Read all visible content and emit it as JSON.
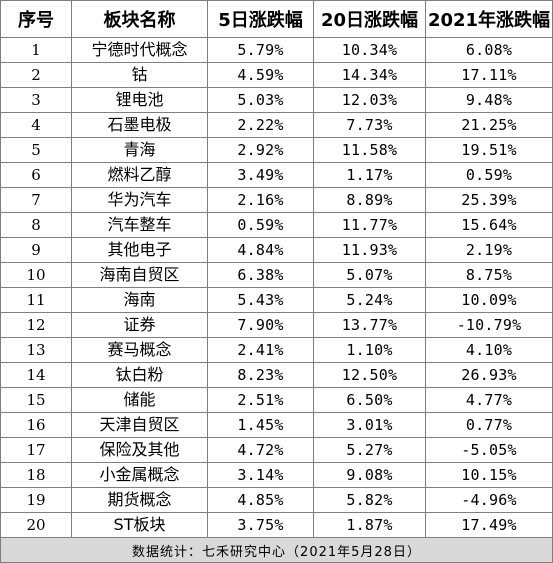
{
  "table": {
    "headers": [
      "序号",
      "板块名称",
      "5日涨跌幅",
      "20日涨跌幅",
      "2021年涨跌幅"
    ],
    "rows": [
      [
        "1",
        "宁德时代概念",
        "5.79%",
        "10.34%",
        "6.08%"
      ],
      [
        "2",
        "钴",
        "4.59%",
        "14.34%",
        "17.11%"
      ],
      [
        "3",
        "锂电池",
        "5.03%",
        "12.03%",
        "9.48%"
      ],
      [
        "4",
        "石墨电极",
        "2.22%",
        "7.73%",
        "21.25%"
      ],
      [
        "5",
        "青海",
        "2.92%",
        "11.58%",
        "19.51%"
      ],
      [
        "6",
        "燃料乙醇",
        "3.49%",
        "1.17%",
        "0.59%"
      ],
      [
        "7",
        "华为汽车",
        "2.16%",
        "8.89%",
        "25.39%"
      ],
      [
        "8",
        "汽车整车",
        "0.59%",
        "11.77%",
        "15.64%"
      ],
      [
        "9",
        "其他电子",
        "4.84%",
        "11.93%",
        "2.19%"
      ],
      [
        "10",
        "海南自贸区",
        "6.38%",
        "5.07%",
        "8.75%"
      ],
      [
        "11",
        "海南",
        "5.43%",
        "5.24%",
        "10.09%"
      ],
      [
        "12",
        "证券",
        "7.90%",
        "13.77%",
        "-10.79%"
      ],
      [
        "13",
        "赛马概念",
        "2.41%",
        "1.10%",
        "4.10%"
      ],
      [
        "14",
        "钛白粉",
        "8.23%",
        "12.50%",
        "26.93%"
      ],
      [
        "15",
        "储能",
        "2.51%",
        "6.50%",
        "4.77%"
      ],
      [
        "16",
        "天津自贸区",
        "1.45%",
        "3.01%",
        "0.77%"
      ],
      [
        "17",
        "保险及其他",
        "4.72%",
        "5.27%",
        "-5.05%"
      ],
      [
        "18",
        "小金属概念",
        "3.14%",
        "9.08%",
        "10.15%"
      ],
      [
        "19",
        "期货概念",
        "4.85%",
        "5.82%",
        "-4.96%"
      ],
      [
        "20",
        "ST板块",
        "3.75%",
        "1.87%",
        "17.49%"
      ]
    ],
    "footer": "数据统计：七禾研究中心（2021年5月28日）"
  },
  "colors": {
    "border": "#7f7f7f",
    "footer_background": "#d9d9d9",
    "text": "#000000"
  }
}
